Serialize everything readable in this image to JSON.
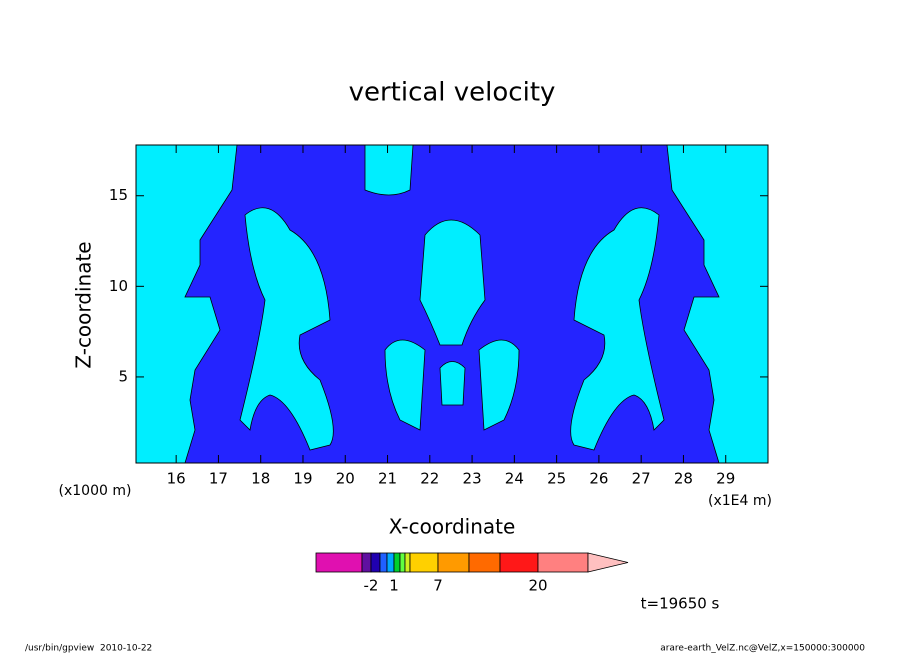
{
  "chart_data": {
    "type": "contour",
    "title": "vertical velocity",
    "x_label": "X-coordinate",
    "y_label": "Z-coordinate",
    "x_unit_left": "(x1000 m)",
    "x_unit_right": "(x1E4 m)",
    "xlim": [
      15.05,
      30
    ],
    "xticks": [
      16,
      17,
      18,
      19,
      20,
      21,
      22,
      23,
      24,
      25,
      26,
      27,
      28,
      29
    ],
    "ylim": [
      0.25,
      17.8
    ],
    "yticks": [
      5,
      10,
      15
    ],
    "colorbar": {
      "colors": [
        "#e010b0",
        "#6010a0",
        "#2000b0",
        "#2060ff",
        "#00a8ff",
        "#00d030",
        "#60ff40",
        "#d0f020",
        "#ffd000",
        "#ff9a00",
        "#ff6a00",
        "#ff1818",
        "#ff8080",
        "#ffc0c0"
      ],
      "levels": [
        null,
        -2,
        null,
        null,
        1,
        null,
        null,
        null,
        7,
        null,
        null,
        20,
        null
      ]
    },
    "time_label": "t=19650 s",
    "footer_left": "/usr/bin/gpview  2010-10-22",
    "footer_right": "arare-earth_VelZ.nc@VelZ,x=150000:300000"
  }
}
